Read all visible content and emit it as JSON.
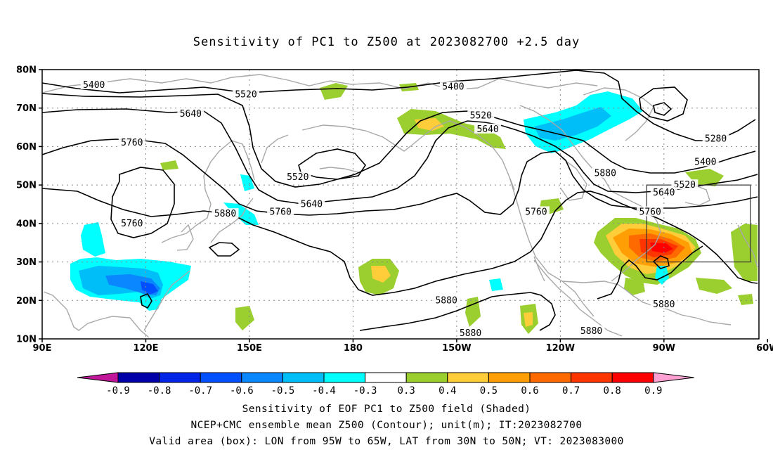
{
  "title": "Sensitivity of PC1 to Z500 at 2023082700 +2.5 day",
  "axes": {
    "lat_labels": [
      "80N",
      "70N",
      "60N",
      "50N",
      "40N",
      "30N",
      "20N",
      "10N"
    ],
    "lon_labels": [
      "90E",
      "120E",
      "150E",
      "180",
      "150W",
      "120W",
      "90W",
      "60W"
    ]
  },
  "contours": {
    "levels": [
      "5280",
      "5400",
      "5520",
      "5640",
      "5760",
      "5880"
    ],
    "labels": [
      {
        "text": "5400",
        "lon": 105,
        "lat": 76
      },
      {
        "text": "5520",
        "lon": 149,
        "lat": 73.5
      },
      {
        "text": "5640",
        "lon": 133,
        "lat": 68.5
      },
      {
        "text": "5760",
        "lon": 116,
        "lat": 61
      },
      {
        "text": "5760",
        "lon": 116,
        "lat": 40
      },
      {
        "text": "5880",
        "lon": 143,
        "lat": 42.5
      },
      {
        "text": "5760",
        "lon": 159,
        "lat": 43
      },
      {
        "text": "5640",
        "lon": 168,
        "lat": 45
      },
      {
        "text": "5520",
        "lon": 164,
        "lat": 52
      },
      {
        "text": "5400",
        "lon": -151,
        "lat": 75.5
      },
      {
        "text": "5520",
        "lon": -143,
        "lat": 68
      },
      {
        "text": "5640",
        "lon": -141,
        "lat": 64.5
      },
      {
        "text": "5760",
        "lon": -127,
        "lat": 43
      },
      {
        "text": "5880",
        "lon": -107,
        "lat": 53
      },
      {
        "text": "5880",
        "lon": -153,
        "lat": 20
      },
      {
        "text": "5880",
        "lon": -146,
        "lat": 11.5
      },
      {
        "text": "5880",
        "lon": -111,
        "lat": 12
      },
      {
        "text": "5880",
        "lon": -90,
        "lat": 19
      },
      {
        "text": "5280",
        "lon": -75,
        "lat": 62
      },
      {
        "text": "5400",
        "lon": -78,
        "lat": 56
      },
      {
        "text": "5520",
        "lon": -84,
        "lat": 50
      },
      {
        "text": "5640",
        "lon": -90,
        "lat": 48
      },
      {
        "text": "5760",
        "lon": -94,
        "lat": 43
      }
    ]
  },
  "colorbar": {
    "colors": [
      "#c0179a",
      "#0000a8",
      "#0025e6",
      "#0050ff",
      "#0a86ff",
      "#00bff8",
      "#00ffff",
      "#ffffff",
      "#9bce2f",
      "#ffcd39",
      "#ff9e05",
      "#ff6a00",
      "#ff3500",
      "#ff0000",
      "#ffa0d2"
    ],
    "labels": [
      "-0.9",
      "-0.8",
      "-0.7",
      "-0.6",
      "-0.5",
      "-0.4",
      "-0.3",
      "0.3",
      "0.4",
      "0.5",
      "0.6",
      "0.7",
      "0.8",
      "0.9"
    ]
  },
  "sensitivity_regions": [
    {
      "level": "-0.4",
      "lon": 114,
      "lat": 23
    },
    {
      "level": "-0.5",
      "lon": 119,
      "lat": 22
    },
    {
      "level": "-0.6",
      "lon": 124,
      "lat": 21
    },
    {
      "level": "-0.4",
      "lon": -98,
      "lat": 64
    },
    {
      "level": "-0.5",
      "lon": -88,
      "lat": 67
    },
    {
      "level": "0.6",
      "lon": -82,
      "lat": 33
    },
    {
      "level": "0.7",
      "lon": -78,
      "lat": 33
    },
    {
      "level": "0.8",
      "lon": -76,
      "lat": 32
    },
    {
      "level": "0.4",
      "lon": -146,
      "lat": 64
    },
    {
      "level": "0.5",
      "lon": -150,
      "lat": 29
    }
  ],
  "valid_box": {
    "lon_min": -95,
    "lon_max": -65,
    "lat_min": 30,
    "lat_max": 50
  },
  "captions": [
    "Sensitivity of EOF PC1 to Z500 field (Shaded)",
    "NCEP+CMC ensemble mean Z500 (Contour); unit(m); IT:2023082700",
    "Valid area (box): LON from 95W to 65W, LAT from 30N to 50N; VT: 2023083000"
  ]
}
